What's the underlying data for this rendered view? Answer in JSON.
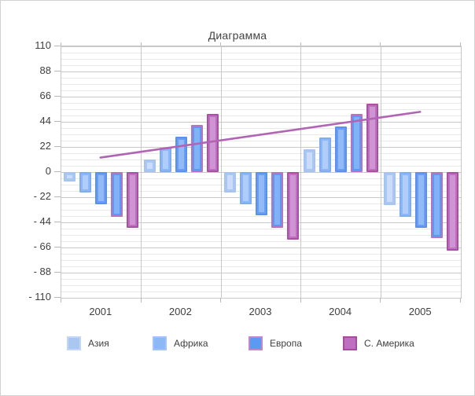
{
  "title": "Диаграмма",
  "chart_data": {
    "type": "bar",
    "title": "Диаграмма",
    "categories": [
      "2001",
      "2002",
      "2003",
      "2004",
      "2005"
    ],
    "series": [
      {
        "name": "Азия",
        "in_legend": true,
        "values": [
          -8,
          11,
          -18,
          20,
          -29
        ],
        "fill": "#a9c7f1",
        "inner": "#cadcfa",
        "edge": "#a5c4f2",
        "legend_edge": "#c4d7f8"
      },
      {
        "name": "Африка",
        "in_legend": true,
        "values": [
          -18,
          21,
          -28,
          30,
          -39
        ],
        "fill": "#8db7f5",
        "inner": "#b0ccf8",
        "edge": "#7fadf2",
        "legend_edge": "#a3c4f6"
      },
      {
        "name": "",
        "in_legend": false,
        "values": [
          -28,
          31,
          -38,
          40,
          -49
        ],
        "fill": "#6b9ef0",
        "inner": "#92baf6",
        "edge": "#5b90ee",
        "legend_edge": "#5b90ee"
      },
      {
        "name": "Европа",
        "in_legend": true,
        "values": [
          -39,
          41,
          -49,
          51,
          -58
        ],
        "fill": "#5b9af3",
        "inner": "#82b1f6",
        "edge": "#b873be",
        "legend_edge": "#c388c6"
      },
      {
        "name": "С. Америка",
        "in_legend": true,
        "values": [
          -49,
          51,
          -59,
          60,
          -69
        ],
        "fill": "#bc70bf",
        "inner": "#cf94d2",
        "edge": "#a94fa4",
        "legend_edge": "#a44d9f"
      }
    ],
    "trendline": {
      "from_category": "2001",
      "to_category": "2005",
      "values": [
        12,
        52
      ],
      "color": "#b164b4"
    },
    "y_axis": {
      "min": -110,
      "max": 110,
      "major_unit": 22,
      "minor_unit": 5.5,
      "tick_labels": [
        "110",
        "88",
        "66",
        "44",
        "22",
        "0",
        "- 22",
        "- 44",
        "- 66",
        "- 88",
        "- 110"
      ]
    },
    "x_axis": {
      "tick_labels": [
        "2001",
        "2002",
        "2003",
        "2004",
        "2005"
      ]
    },
    "grid": {
      "major": true,
      "minor": true,
      "vertical": true
    },
    "legend_position": "bottom"
  },
  "legend": {
    "labels": [
      "Азия",
      "Африка",
      "Европа",
      "С. Америка"
    ]
  }
}
